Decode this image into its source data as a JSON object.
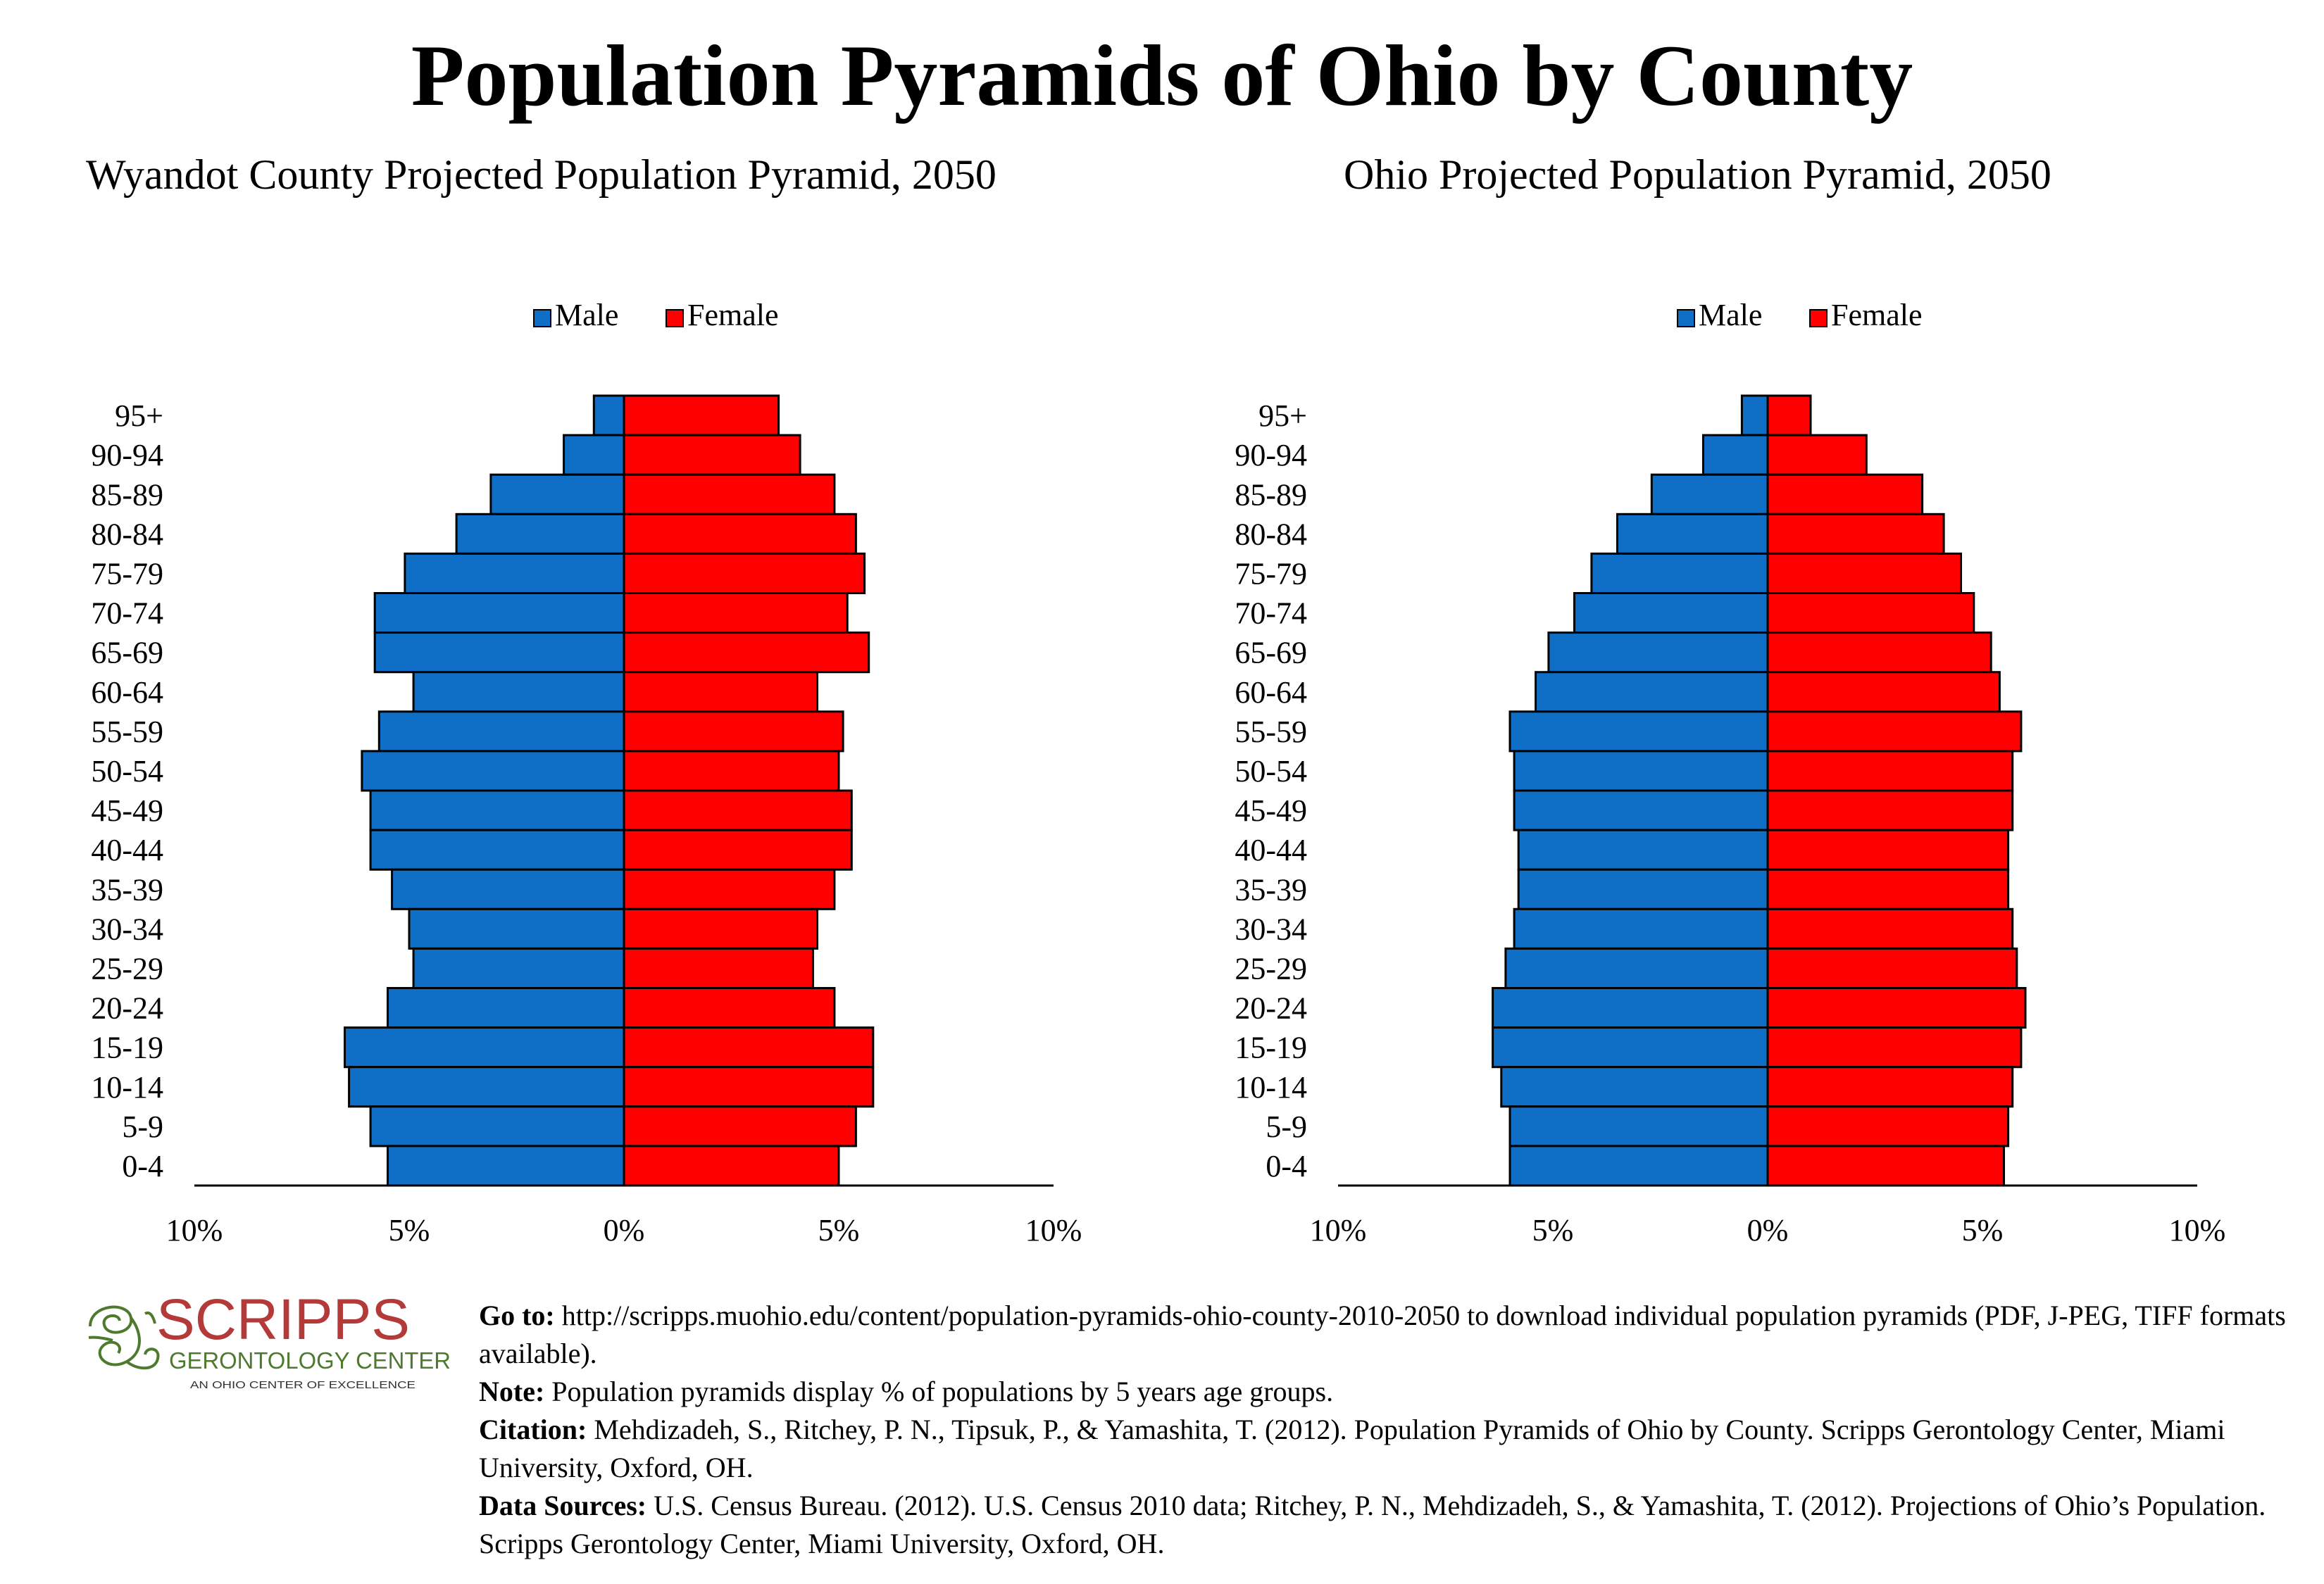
{
  "title": "Population Pyramids of Ohio by County",
  "chart_data": [
    {
      "type": "bar",
      "orientation": "horizontal-pyramid",
      "title": "Wyandot County Projected Population Pyramid, 2050",
      "legend": {
        "position": "top-center",
        "male_label": "Male",
        "female_label": "Female"
      },
      "categories": [
        "95+",
        "90-94",
        "85-89",
        "80-84",
        "75-79",
        "70-74",
        "65-69",
        "60-64",
        "55-59",
        "50-54",
        "45-49",
        "40-44",
        "35-39",
        "30-34",
        "25-29",
        "20-24",
        "15-19",
        "10-14",
        "5-9",
        "0-4"
      ],
      "series": [
        {
          "name": "Male",
          "values": [
            0.7,
            1.4,
            3.1,
            3.9,
            5.1,
            5.8,
            5.8,
            4.9,
            5.7,
            6.1,
            5.9,
            5.9,
            5.4,
            5.0,
            4.9,
            5.5,
            6.5,
            6.4,
            5.9,
            5.5
          ]
        },
        {
          "name": "Female",
          "values": [
            3.6,
            4.1,
            4.9,
            5.4,
            5.6,
            5.2,
            5.7,
            4.5,
            5.1,
            5.0,
            5.3,
            5.3,
            4.9,
            4.5,
            4.4,
            4.9,
            5.8,
            5.8,
            5.4,
            5.0
          ]
        }
      ],
      "xlim": [
        -10,
        10
      ],
      "x_ticks": [
        -10,
        -5,
        0,
        5,
        10
      ],
      "x_tick_labels": [
        "10%",
        "5%",
        "0%",
        "5%",
        "10%"
      ],
      "colors": {
        "male": "#0F6FC6",
        "female": "#FF0000"
      }
    },
    {
      "type": "bar",
      "orientation": "horizontal-pyramid",
      "title": "Ohio Projected Population Pyramid, 2050",
      "legend": {
        "position": "top-center",
        "male_label": "Male",
        "female_label": "Female"
      },
      "categories": [
        "95+",
        "90-94",
        "85-89",
        "80-84",
        "75-79",
        "70-74",
        "65-69",
        "60-64",
        "55-59",
        "50-54",
        "45-49",
        "40-44",
        "35-39",
        "30-34",
        "25-29",
        "20-24",
        "15-19",
        "10-14",
        "5-9",
        "0-4"
      ],
      "series": [
        {
          "name": "Male",
          "values": [
            0.6,
            1.5,
            2.7,
            3.5,
            4.1,
            4.5,
            5.1,
            5.4,
            6.0,
            5.9,
            5.9,
            5.8,
            5.8,
            5.9,
            6.1,
            6.4,
            6.4,
            6.2,
            6.0,
            6.0
          ]
        },
        {
          "name": "Female",
          "values": [
            1.0,
            2.3,
            3.6,
            4.1,
            4.5,
            4.8,
            5.2,
            5.4,
            5.9,
            5.7,
            5.7,
            5.6,
            5.6,
            5.7,
            5.8,
            6.0,
            5.9,
            5.7,
            5.6,
            5.5
          ]
        }
      ],
      "xlim": [
        -10,
        10
      ],
      "x_ticks": [
        -10,
        -5,
        0,
        5,
        10
      ],
      "x_tick_labels": [
        "10%",
        "5%",
        "0%",
        "5%",
        "10%"
      ],
      "colors": {
        "male": "#0F6FC6",
        "female": "#FF0000"
      }
    }
  ],
  "logo": {
    "name": "SCRIPPS",
    "line2": "GERONTOLOGY CENTER",
    "line3": "AN OHIO CENTER OF EXCELLENCE",
    "colors": {
      "name": "#B43A3A",
      "text": "#4E7A2E"
    }
  },
  "footer": {
    "goto_label": "Go to:",
    "goto_text": "http://scripps.muohio.edu/content/population-pyramids-ohio-county-2010-2050 to download individual population pyramids (PDF, J-PEG, TIFF formats available).",
    "note_label": "Note:",
    "note_text": "Population pyramids display % of populations by 5 years age groups.",
    "citation_label": "Citation:",
    "citation_text": "Mehdizadeh, S., Ritchey, P. N., Tipsuk, P., & Yamashita, T. (2012). Population Pyramids of Ohio by County. Scripps Gerontology Center, Miami University, Oxford, OH.",
    "sources_label": "Data Sources:",
    "sources_text": "U.S. Census Bureau. (2012). U.S. Census 2010 data; Ritchey, P. N., Mehdizadeh, S., & Yamashita, T. (2012). Projections of Ohio’s Population. Scripps Gerontology Center, Miami University, Oxford, OH."
  }
}
